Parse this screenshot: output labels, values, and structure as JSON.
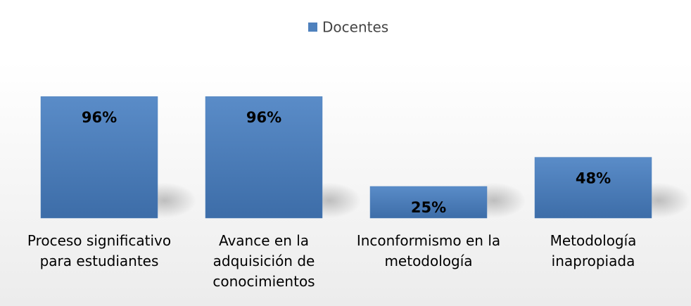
{
  "chart_data": {
    "type": "bar",
    "categories": [
      "Proceso significativo para estudiantes",
      "Avance en la adquisición de conocimientos",
      "Inconformismo en la metodología",
      "Metodología inapropiada"
    ],
    "series": [
      {
        "name": "Docentes",
        "color": "#4f81bd",
        "values": [
          96,
          96,
          25,
          48
        ],
        "value_labels": [
          "96%",
          "96%",
          "25%",
          "48%"
        ]
      }
    ],
    "legend": "top"
  }
}
